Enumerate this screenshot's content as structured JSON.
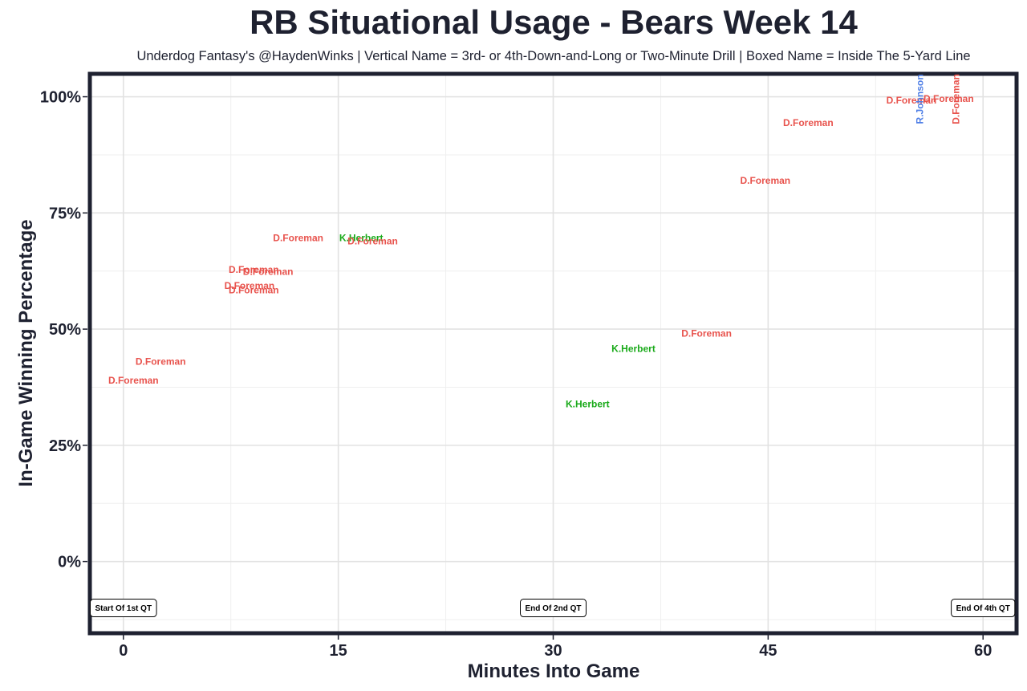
{
  "chart_data": {
    "type": "scatter",
    "title": "RB Situational Usage - Bears Week 14",
    "subtitle": "Underdog Fantasy's @HaydenWinks | Vertical Name = 3rd- or 4th-Down-and-Long or Two-Minute Drill | Boxed Name = Inside The 5-Yard Line",
    "xlabel": "Minutes Into Game",
    "ylabel": "In-Game Winning Percentage",
    "xlim": [
      -2.2,
      62.2
    ],
    "ylim": [
      -15,
      104.5
    ],
    "xticks": [
      0,
      15,
      30,
      45,
      60
    ],
    "xtick_labels": [
      "0",
      "15",
      "30",
      "45",
      "60"
    ],
    "yticks": [
      0,
      25,
      50,
      75,
      100
    ],
    "ytick_labels": [
      "0%",
      "25%",
      "50%",
      "75%",
      "100%"
    ],
    "grid": true,
    "legend": "none",
    "colors": {
      "D.Foreman": "#e8534d",
      "K.Herbert": "#1aaa1a",
      "R.Johnson": "#4f7fe6"
    },
    "points": [
      {
        "player": "D.Foreman",
        "x": 0.7,
        "y": 39.0,
        "vertical": false
      },
      {
        "player": "D.Foreman",
        "x": 2.6,
        "y": 43.0,
        "vertical": false
      },
      {
        "player": "D.Foreman",
        "x": 8.8,
        "y": 59.3,
        "vertical": false
      },
      {
        "player": "D.Foreman",
        "x": 9.1,
        "y": 58.4,
        "vertical": false
      },
      {
        "player": "D.Foreman",
        "x": 9.1,
        "y": 62.8,
        "vertical": false
      },
      {
        "player": "D.Foreman",
        "x": 10.1,
        "y": 62.4,
        "vertical": false
      },
      {
        "player": "D.Foreman",
        "x": 12.2,
        "y": 69.6,
        "vertical": false
      },
      {
        "player": "K.Herbert",
        "x": 16.6,
        "y": 69.6,
        "vertical": false
      },
      {
        "player": "D.Foreman",
        "x": 17.4,
        "y": 68.9,
        "vertical": false
      },
      {
        "player": "K.Herbert",
        "x": 32.4,
        "y": 33.9,
        "vertical": false
      },
      {
        "player": "K.Herbert",
        "x": 35.6,
        "y": 45.8,
        "vertical": false
      },
      {
        "player": "D.Foreman",
        "x": 40.7,
        "y": 49.1,
        "vertical": false
      },
      {
        "player": "D.Foreman",
        "x": 44.8,
        "y": 82.0,
        "vertical": false
      },
      {
        "player": "D.Foreman",
        "x": 47.8,
        "y": 94.4,
        "vertical": false
      },
      {
        "player": "D.Foreman",
        "x": 55.0,
        "y": 99.2,
        "vertical": false
      },
      {
        "player": "D.Foreman",
        "x": 57.6,
        "y": 99.6,
        "vertical": false
      },
      {
        "player": "R.Johnson",
        "x": 55.6,
        "y": 99.5,
        "vertical": true
      },
      {
        "player": "D.Foreman",
        "x": 58.1,
        "y": 99.5,
        "vertical": true
      }
    ],
    "period_markers": [
      {
        "x": 0,
        "y": -10,
        "label": "Start Of 1st QT"
      },
      {
        "x": 30,
        "y": -10,
        "label": "End Of 2nd QT"
      },
      {
        "x": 60,
        "y": -10,
        "label": "End Of 4th QT"
      }
    ]
  }
}
